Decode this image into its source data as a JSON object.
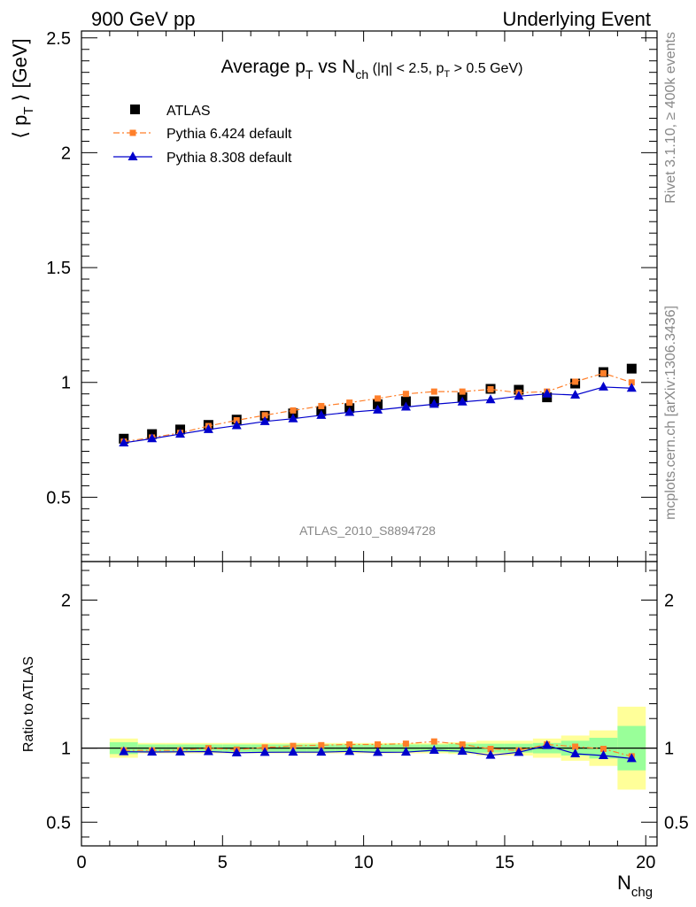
{
  "header": {
    "left": "900 GeV pp",
    "right": "Underlying Event"
  },
  "side_labels": {
    "upper": "Rivet 3.1.10, ≥ 400k events",
    "lower": "mcplots.cern.ch [arXiv:1306.3436]"
  },
  "chart_data": [
    {
      "type": "scatter",
      "title_parts": {
        "main": "Average p",
        "main_sub": "T",
        "vs": " vs N",
        "vs_sub": "ch",
        "cut1": " (|η| < 2.5, p",
        "cut1_sub": "T",
        "cut2": " > 0.5 GeV)"
      },
      "ylabel": "⟨ p",
      "ylabel_sub": "T",
      "ylabel_tail": " ⟩ [GeV]",
      "analysis_tag": "ATLAS_2010_S8894728",
      "xlim": [
        0,
        20.4
      ],
      "ylim": [
        0.22,
        2.53
      ],
      "yticks": [
        0.5,
        1,
        1.5,
        2,
        2.5
      ],
      "ytick_labels": [
        "0.5",
        "1",
        "1.5",
        "2",
        "2.5"
      ],
      "x": [
        1.5,
        2.5,
        3.5,
        4.5,
        5.5,
        6.5,
        7.5,
        8.5,
        9.5,
        10.5,
        11.5,
        12.5,
        13.5,
        14.5,
        15.5,
        16.5,
        17.5,
        18.5,
        19.5
      ],
      "series": [
        {
          "name": "ATLAS",
          "color": "#000000",
          "marker": "square",
          "values": [
            0.755,
            0.775,
            0.795,
            0.815,
            0.838,
            0.855,
            0.865,
            0.875,
            0.888,
            0.905,
            0.918,
            0.918,
            0.935,
            0.972,
            0.968,
            0.935,
            0.995,
            1.045,
            1.06
          ]
        },
        {
          "name": "Pythia 6.424 default",
          "color": "#ff7f2a",
          "marker": "square-small",
          "line": "dashdot",
          "values": [
            0.742,
            0.76,
            0.78,
            0.81,
            0.835,
            0.857,
            0.878,
            0.897,
            0.912,
            0.93,
            0.95,
            0.96,
            0.96,
            0.97,
            0.955,
            0.96,
            1.003,
            1.04,
            1.0
          ]
        },
        {
          "name": "Pythia 8.308 default",
          "color": "#0000cc",
          "marker": "triangle",
          "line": "solid",
          "values": [
            0.737,
            0.755,
            0.775,
            0.795,
            0.812,
            0.83,
            0.842,
            0.857,
            0.87,
            0.88,
            0.893,
            0.905,
            0.915,
            0.925,
            0.94,
            0.95,
            0.945,
            0.98,
            0.975
          ]
        }
      ]
    },
    {
      "type": "line",
      "ylabel": "Ratio to ATLAS",
      "xlabel": "N",
      "xlabel_sub": "chg",
      "xlim": [
        0,
        20.4
      ],
      "ylim": [
        0.34,
        2.26
      ],
      "yticks": [
        0.5,
        1,
        2
      ],
      "ytick_labels": [
        "0.5",
        "1",
        "2"
      ],
      "xticks": [
        0,
        5,
        10,
        15,
        20
      ],
      "xtick_labels": [
        "0",
        "5",
        "10",
        "15",
        "20"
      ],
      "bands": {
        "bin_edges": [
          1,
          2,
          3,
          4,
          5,
          6,
          7,
          8,
          9,
          10,
          11,
          12,
          13,
          14,
          15,
          16,
          17,
          18,
          19,
          20
        ],
        "green_halfwidth": [
          0.04,
          0.025,
          0.025,
          0.025,
          0.025,
          0.025,
          0.025,
          0.025,
          0.025,
          0.025,
          0.025,
          0.025,
          0.03,
          0.03,
          0.03,
          0.035,
          0.05,
          0.07,
          0.15
        ],
        "yellow_halfwidth": [
          0.065,
          0.035,
          0.035,
          0.035,
          0.035,
          0.035,
          0.035,
          0.035,
          0.035,
          0.035,
          0.035,
          0.035,
          0.04,
          0.05,
          0.05,
          0.065,
          0.085,
          0.12,
          0.28
        ],
        "green_color": "#99ff99",
        "yellow_color": "#ffff99"
      },
      "x": [
        1.5,
        2.5,
        3.5,
        4.5,
        5.5,
        6.5,
        7.5,
        8.5,
        9.5,
        10.5,
        11.5,
        12.5,
        13.5,
        14.5,
        15.5,
        16.5,
        17.5,
        18.5,
        19.5
      ],
      "series": [
        {
          "name": "Pythia 6.424 default",
          "color": "#ff7f2a",
          "values": [
            0.985,
            0.985,
            0.985,
            1.0,
            0.99,
            1.005,
            1.015,
            1.02,
            1.025,
            1.025,
            1.03,
            1.045,
            1.025,
            0.995,
            0.985,
            1.025,
            1.01,
            0.995,
            0.945
          ]
        },
        {
          "name": "Pythia 8.308 default",
          "color": "#0000cc",
          "values": [
            0.976,
            0.974,
            0.975,
            0.977,
            0.969,
            0.972,
            0.973,
            0.973,
            0.978,
            0.972,
            0.973,
            0.986,
            0.979,
            0.952,
            0.972,
            1.018,
            0.962,
            0.95,
            0.93
          ]
        }
      ]
    }
  ]
}
